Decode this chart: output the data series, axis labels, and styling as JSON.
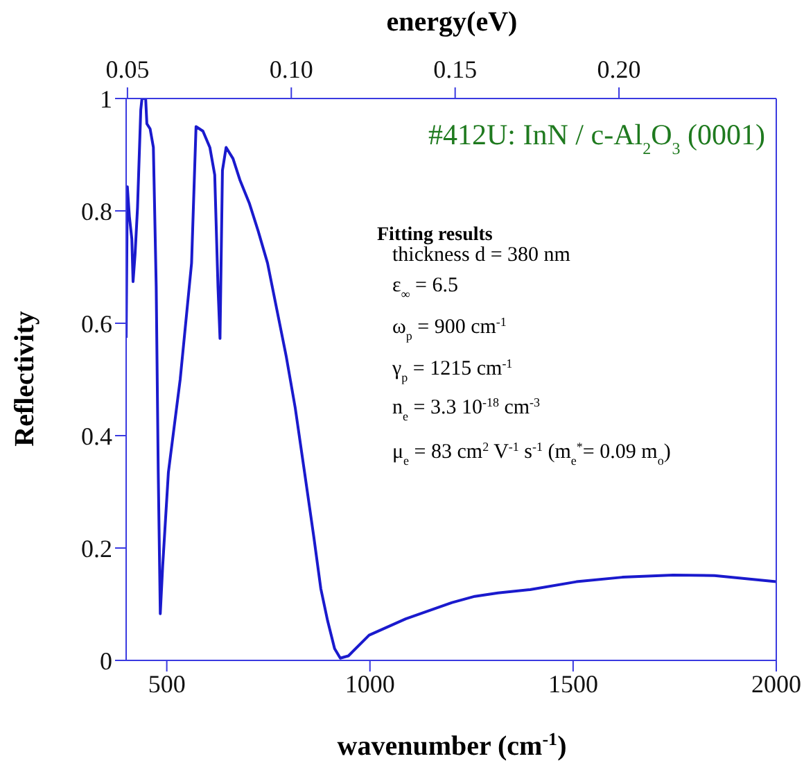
{
  "chart_data": {
    "type": "line",
    "xlabel": "wavenumber (cm$^{-1}$)",
    "ylabel": "Reflectivity",
    "x2label": "energy(eV)",
    "xlim": [
      400,
      2000
    ],
    "xticks": [
      500,
      1000,
      1500,
      2000
    ],
    "x2lim": [
      0.0496,
      0.248
    ],
    "x2ticks": [
      {
        "value": 0.05,
        "label": "0.05"
      },
      {
        "value": 0.1,
        "label": "0.10"
      },
      {
        "value": 0.15,
        "label": "0.15"
      },
      {
        "value": 0.2,
        "label": "0.20"
      }
    ],
    "ylim": [
      0,
      1
    ],
    "yticks": [
      0,
      0.2,
      0.4,
      0.6,
      0.8,
      1
    ],
    "grid": false,
    "legend": false,
    "marker": "none",
    "line_style": "solid",
    "annotations": [
      "#412U: InN /  c-Al$_{2}$O$_{3}$ (0001)",
      "Fitting results",
      "thickness  d = 380 nm",
      "ε$_{∞}$ = 6.5",
      "ω$_{p}$ = 900 cm$^{-1}$",
      "γ$_{p}$ = 1215 cm$^{-1}$",
      "n$_{e}$ =  3.3 10$^{-18}$ cm$^{-3}$",
      "μ$_{e}$ = 83 cm$^{2}$ V$^{-1}$ s$^{-1}$  (m$_{e}$$^{*}$= 0.09 m$_{o}$)"
    ],
    "series": [
      {
        "color": "#1a1acd",
        "x": [
          400,
          403,
          408,
          414,
          417,
          422,
          428,
          436,
          439,
          448,
          451,
          459,
          467,
          474,
          479,
          484,
          490,
          504,
          533,
          561,
          572,
          589,
          606,
          618,
          626,
          631,
          637,
          646,
          663,
          680,
          703,
          725,
          748,
          771,
          794,
          816,
          839,
          862,
          879,
          896,
          913,
          927,
          947,
          998,
          1088,
          1202,
          1258,
          1315,
          1394,
          1508,
          1621,
          1746,
          1848,
          2000
        ],
        "values": [
          0.574,
          0.843,
          0.79,
          0.75,
          0.674,
          0.723,
          0.806,
          0.98,
          1.0,
          1.0,
          0.955,
          0.946,
          0.913,
          0.665,
          0.335,
          0.083,
          0.169,
          0.335,
          0.5,
          0.707,
          0.95,
          0.942,
          0.913,
          0.864,
          0.665,
          0.573,
          0.872,
          0.913,
          0.893,
          0.855,
          0.814,
          0.764,
          0.707,
          0.624,
          0.541,
          0.45,
          0.335,
          0.219,
          0.128,
          0.07,
          0.021,
          0.004,
          0.008,
          0.045,
          0.074,
          0.103,
          0.114,
          0.12,
          0.126,
          0.14,
          0.148,
          0.152,
          0.151,
          0.14
        ]
      }
    ]
  }
}
